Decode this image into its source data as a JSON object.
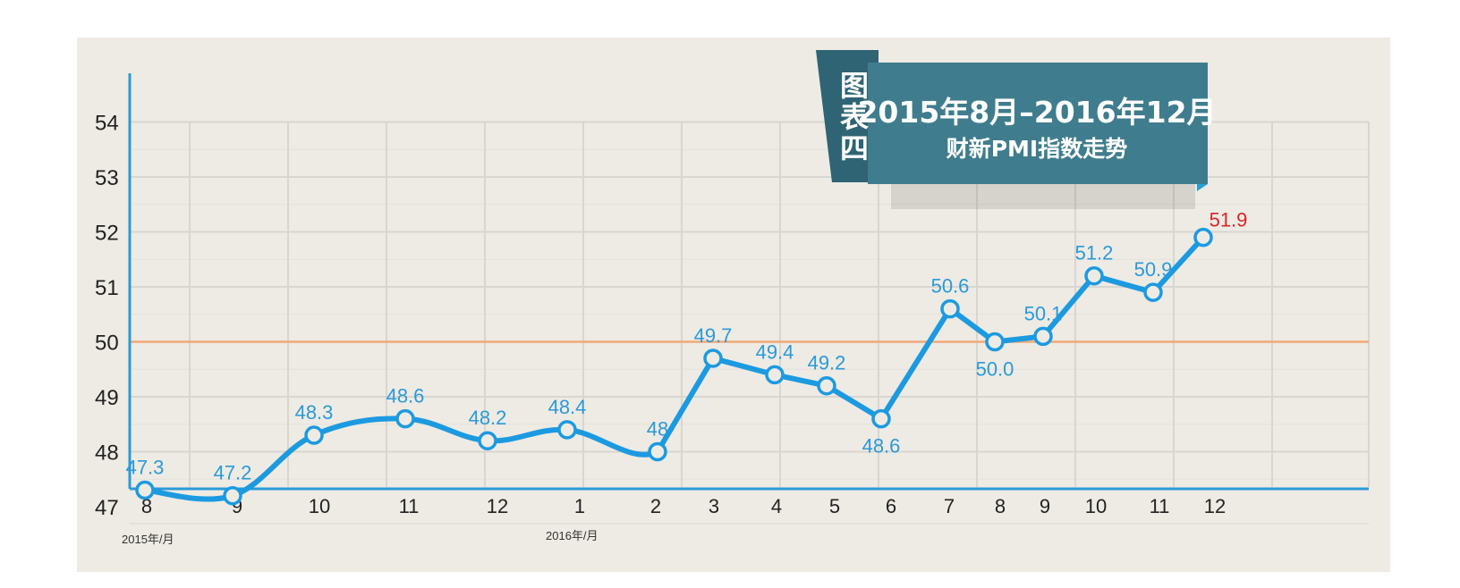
{
  "colors": {
    "background": "#ffffff",
    "panel": "#eeebe4",
    "grid": "#d8d6d0",
    "axis": "#2a9ad8",
    "line": "#1c9ae0",
    "threshold": "#f0a878",
    "label": "#2a9ad8",
    "last_label": "#d8252a",
    "banner": "#3f7d8e",
    "banner_dark": "#2f6474",
    "title_text": "#ffffff",
    "tick_text": "#222222"
  },
  "title": {
    "tag": [
      "图",
      "表",
      "四"
    ],
    "line1": "2015年8月–2016年12月",
    "line2": "财新PMI指数走势"
  },
  "axis_notes": {
    "left": "2015年/月",
    "mid": "2016年/月"
  },
  "chart_data": {
    "type": "line",
    "title": "2015年8月–2016年12月 财新PMI指数走势",
    "x_tick_labels": [
      "8",
      "9",
      "10",
      "11",
      "12",
      "1",
      "2",
      "3",
      "4",
      "5",
      "6",
      "7",
      "8",
      "9",
      "10",
      "11",
      "12"
    ],
    "y_tick_labels": [
      "47",
      "48",
      "49",
      "50",
      "51",
      "52",
      "53",
      "54"
    ],
    "ylim": [
      47,
      54
    ],
    "reference_line": 50,
    "grid": true,
    "series": [
      {
        "values": [
          47.3,
          47.2,
          48.3,
          48.6,
          48.2,
          48.4,
          48.0,
          49.7,
          49.4,
          49.2,
          48.6,
          50.6,
          50.0,
          50.1,
          51.2,
          50.9,
          51.9
        ],
        "labels": [
          "47.3",
          "47.2",
          "48.3",
          "48.6",
          "48.2",
          "48.4",
          "48",
          "49.7",
          "49.4",
          "49.2",
          "48.6",
          "50.6",
          "50.0",
          "50.1",
          "51.2",
          "50.9",
          "51.9"
        ],
        "label_positions": [
          "above",
          "above",
          "above",
          "above",
          "above",
          "above",
          "above",
          "above",
          "above",
          "above",
          "below",
          "above",
          "below",
          "above",
          "above",
          "above",
          "above"
        ]
      }
    ]
  }
}
